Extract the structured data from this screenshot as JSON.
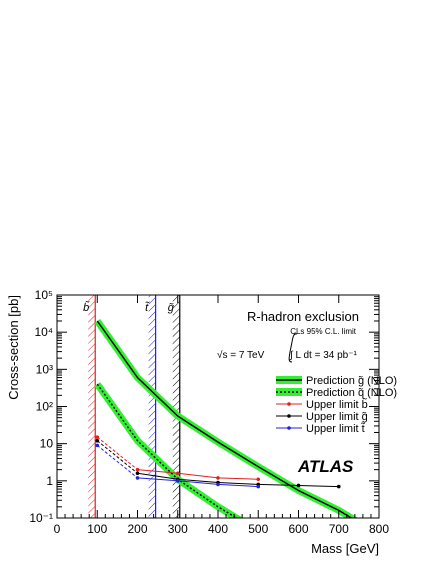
{
  "chart_data": {
    "type": "line",
    "title": "R-hadron exclusion",
    "subtitle": "CLs 95% C.L. limit",
    "energy_text": "√s = 7 TeV",
    "lumi_text": "∫ L dt = 34 pb⁻¹",
    "brand": "ATLAS",
    "xlabel": "Mass [GeV]",
    "ylabel": "Cross-section [pb]",
    "xlim": [
      0,
      800
    ],
    "ylim": [
      0.1,
      100000
    ],
    "y_scale": "log",
    "x_ticks": [
      0,
      100,
      200,
      300,
      400,
      500,
      600,
      700,
      800
    ],
    "x_tick_labels": [
      "0",
      "100",
      "200",
      "300",
      "400",
      "500",
      "600",
      "700",
      "800"
    ],
    "y_ticks": [
      0.1,
      1,
      10,
      100,
      1000,
      10000,
      100000
    ],
    "y_tick_labels": [
      "10⁻¹",
      "1",
      "10",
      "10²",
      "10³",
      "10⁴",
      "10⁵"
    ],
    "legend_position": "right",
    "exclusion_limits": [
      {
        "label": "b̃",
        "mass": 95,
        "color": "#e02020"
      },
      {
        "label": "t̃",
        "mass": 245,
        "color": "#2020e0"
      },
      {
        "label": "g̃",
        "mass": 305,
        "color": "#000000"
      }
    ],
    "series": [
      {
        "name": "Prediction g̃ (NLO)",
        "kind": "band",
        "color": "#000000",
        "band_color": "#33ee33",
        "dash": "solid",
        "x": [
          100,
          200,
          300,
          400,
          500,
          600,
          700,
          760
        ],
        "y": [
          20000,
          600,
          55,
          11,
          2.4,
          0.55,
          0.16,
          0.065
        ]
      },
      {
        "name": "Prediction q̃ (NLO)",
        "kind": "band",
        "color": "#000000",
        "band_color": "#33ee33",
        "dash": "dotted",
        "x": [
          100,
          200,
          300,
          400,
          470
        ],
        "y": [
          400,
          12,
          1.1,
          0.2,
          0.07
        ]
      },
      {
        "name": "Upper limit b̃",
        "kind": "limit",
        "color": "#e02020",
        "x": [
          100,
          200,
          300,
          400,
          500
        ],
        "y": [
          15,
          2,
          1.6,
          1.2,
          1.1
        ]
      },
      {
        "name": "Upper limit g̃",
        "kind": "limit",
        "color": "#000000",
        "x": [
          100,
          200,
          300,
          400,
          500,
          600,
          700
        ],
        "y": [
          12,
          1.6,
          1.1,
          0.9,
          0.8,
          0.75,
          0.7
        ]
      },
      {
        "name": "Upper limit t̃",
        "kind": "limit",
        "color": "#2020e0",
        "x": [
          100,
          200,
          300,
          400,
          500
        ],
        "y": [
          9,
          1.2,
          1,
          0.8,
          0.7
        ]
      }
    ]
  }
}
